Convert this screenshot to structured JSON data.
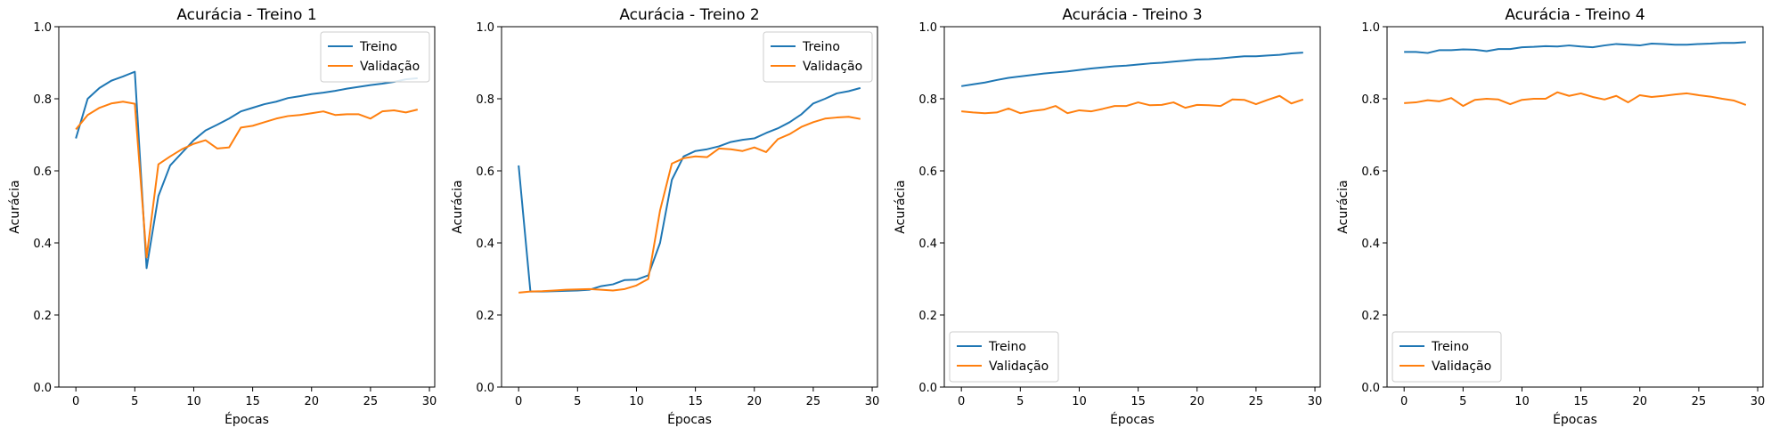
{
  "chart_data": [
    {
      "type": "line",
      "title": "Acurácia - Treino 1",
      "xlabel": "Épocas",
      "ylabel": "Acurácia",
      "xlim": [
        -1.45,
        30.45
      ],
      "ylim": [
        0,
        1.0
      ],
      "xticks": [
        0,
        5,
        10,
        15,
        20,
        25,
        30
      ],
      "yticks": [
        0.0,
        0.2,
        0.4,
        0.6,
        0.8,
        1.0
      ],
      "legend": "top-right",
      "x": [
        0,
        1,
        2,
        3,
        4,
        5,
        6,
        7,
        8,
        9,
        10,
        11,
        12,
        13,
        14,
        15,
        16,
        17,
        18,
        19,
        20,
        21,
        22,
        23,
        24,
        25,
        26,
        27,
        28,
        29
      ],
      "series": [
        {
          "name": "Treino",
          "color": "#1f77b4",
          "values": [
            0.69,
            0.8,
            0.83,
            0.85,
            0.862,
            0.875,
            0.33,
            0.53,
            0.615,
            0.65,
            0.685,
            0.712,
            0.728,
            0.745,
            0.765,
            0.775,
            0.785,
            0.792,
            0.802,
            0.807,
            0.813,
            0.817,
            0.822,
            0.828,
            0.833,
            0.838,
            0.842,
            0.847,
            0.854,
            0.857
          ]
        },
        {
          "name": "Validação",
          "color": "#ff7f0e",
          "values": [
            0.715,
            0.755,
            0.775,
            0.787,
            0.792,
            0.786,
            0.36,
            0.618,
            0.64,
            0.66,
            0.675,
            0.685,
            0.662,
            0.665,
            0.72,
            0.725,
            0.735,
            0.745,
            0.752,
            0.755,
            0.76,
            0.765,
            0.755,
            0.757,
            0.757,
            0.745,
            0.765,
            0.768,
            0.762,
            0.77
          ]
        }
      ]
    },
    {
      "type": "line",
      "title": "Acurácia - Treino 2",
      "xlabel": "Épocas",
      "ylabel": "Acurácia",
      "xlim": [
        -1.45,
        30.45
      ],
      "ylim": [
        0,
        1.0
      ],
      "xticks": [
        0,
        5,
        10,
        15,
        20,
        25,
        30
      ],
      "yticks": [
        0.0,
        0.2,
        0.4,
        0.6,
        0.8,
        1.0
      ],
      "legend": "top-right",
      "x": [
        0,
        1,
        2,
        3,
        4,
        5,
        6,
        7,
        8,
        9,
        10,
        11,
        12,
        13,
        14,
        15,
        16,
        17,
        18,
        19,
        20,
        21,
        22,
        23,
        24,
        25,
        26,
        27,
        28,
        29
      ],
      "series": [
        {
          "name": "Treino",
          "color": "#1f77b4",
          "values": [
            0.615,
            0.265,
            0.265,
            0.266,
            0.267,
            0.268,
            0.27,
            0.28,
            0.285,
            0.297,
            0.298,
            0.31,
            0.4,
            0.575,
            0.64,
            0.655,
            0.66,
            0.668,
            0.68,
            0.686,
            0.69,
            0.705,
            0.718,
            0.735,
            0.757,
            0.787,
            0.8,
            0.815,
            0.821,
            0.83
          ]
        },
        {
          "name": "Validação",
          "color": "#ff7f0e",
          "values": [
            0.262,
            0.265,
            0.266,
            0.268,
            0.27,
            0.271,
            0.272,
            0.27,
            0.268,
            0.272,
            0.282,
            0.3,
            0.49,
            0.62,
            0.635,
            0.64,
            0.638,
            0.662,
            0.66,
            0.655,
            0.665,
            0.652,
            0.688,
            0.702,
            0.722,
            0.735,
            0.745,
            0.748,
            0.75,
            0.744
          ]
        }
      ]
    },
    {
      "type": "line",
      "title": "Acurácia - Treino 3",
      "xlabel": "Épocas",
      "ylabel": "Acurácia",
      "xlim": [
        -1.45,
        30.45
      ],
      "ylim": [
        0,
        1.0
      ],
      "xticks": [
        0,
        5,
        10,
        15,
        20,
        25,
        30
      ],
      "yticks": [
        0.0,
        0.2,
        0.4,
        0.6,
        0.8,
        1.0
      ],
      "legend": "bottom-left",
      "x": [
        0,
        1,
        2,
        3,
        4,
        5,
        6,
        7,
        8,
        9,
        10,
        11,
        12,
        13,
        14,
        15,
        16,
        17,
        18,
        19,
        20,
        21,
        22,
        23,
        24,
        25,
        26,
        27,
        28,
        29
      ],
      "series": [
        {
          "name": "Treino",
          "color": "#1f77b4",
          "values": [
            0.835,
            0.84,
            0.845,
            0.852,
            0.858,
            0.862,
            0.866,
            0.87,
            0.873,
            0.876,
            0.88,
            0.884,
            0.887,
            0.89,
            0.892,
            0.895,
            0.898,
            0.9,
            0.903,
            0.906,
            0.909,
            0.91,
            0.912,
            0.915,
            0.918,
            0.918,
            0.92,
            0.922,
            0.926,
            0.928
          ]
        },
        {
          "name": "Validação",
          "color": "#ff7f0e",
          "values": [
            0.765,
            0.762,
            0.76,
            0.762,
            0.773,
            0.76,
            0.766,
            0.77,
            0.78,
            0.76,
            0.768,
            0.765,
            0.772,
            0.78,
            0.78,
            0.79,
            0.782,
            0.783,
            0.79,
            0.775,
            0.783,
            0.782,
            0.78,
            0.798,
            0.797,
            0.785,
            0.797,
            0.808,
            0.787,
            0.798
          ]
        }
      ]
    },
    {
      "type": "line",
      "title": "Acurácia - Treino 4",
      "xlabel": "Épocas",
      "ylabel": "Acurácia",
      "xlim": [
        -1.45,
        30.45
      ],
      "ylim": [
        0,
        1.0
      ],
      "xticks": [
        0,
        5,
        10,
        15,
        20,
        25,
        30
      ],
      "yticks": [
        0.0,
        0.2,
        0.4,
        0.6,
        0.8,
        1.0
      ],
      "legend": "bottom-left",
      "x": [
        0,
        1,
        2,
        3,
        4,
        5,
        6,
        7,
        8,
        9,
        10,
        11,
        12,
        13,
        14,
        15,
        16,
        17,
        18,
        19,
        20,
        21,
        22,
        23,
        24,
        25,
        26,
        27,
        28,
        29
      ],
      "series": [
        {
          "name": "Treino",
          "color": "#1f77b4",
          "values": [
            0.93,
            0.93,
            0.927,
            0.935,
            0.935,
            0.937,
            0.936,
            0.932,
            0.938,
            0.938,
            0.943,
            0.944,
            0.946,
            0.945,
            0.948,
            0.945,
            0.943,
            0.948,
            0.952,
            0.95,
            0.948,
            0.953,
            0.952,
            0.95,
            0.95,
            0.952,
            0.953,
            0.955,
            0.955,
            0.957
          ]
        },
        {
          "name": "Validação",
          "color": "#ff7f0e",
          "values": [
            0.788,
            0.79,
            0.796,
            0.793,
            0.802,
            0.78,
            0.797,
            0.8,
            0.798,
            0.785,
            0.797,
            0.8,
            0.8,
            0.818,
            0.808,
            0.815,
            0.805,
            0.798,
            0.808,
            0.79,
            0.81,
            0.805,
            0.808,
            0.812,
            0.815,
            0.81,
            0.806,
            0.8,
            0.795,
            0.783
          ]
        }
      ]
    }
  ]
}
